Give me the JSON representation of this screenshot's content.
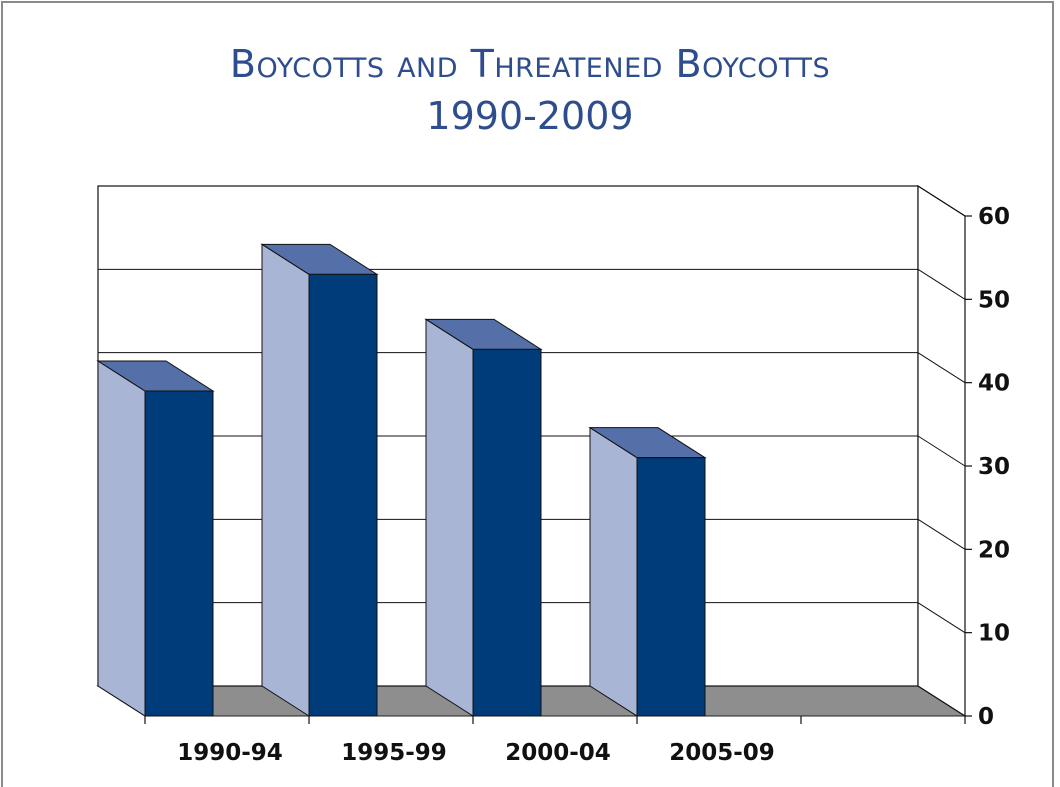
{
  "chart_data": {
    "type": "bar",
    "title": "Boycotts and Threatened Boycotts",
    "subtitle": "1990-2009",
    "categories": [
      "1990-94",
      "1995-99",
      "2000-04",
      "2005-09"
    ],
    "values": [
      39,
      53,
      44,
      31
    ],
    "yticks": [
      0,
      10,
      20,
      30,
      40,
      50,
      60
    ],
    "ylim": [
      0,
      60
    ],
    "axis_position": "right",
    "grid": true,
    "style": "3d",
    "colors": {
      "bar_front": "#003b7a",
      "bar_side": "#a9b5d4",
      "bar_top": "#5570a8",
      "floor": "#8e8e8e",
      "title": "#2e4d8e"
    }
  }
}
